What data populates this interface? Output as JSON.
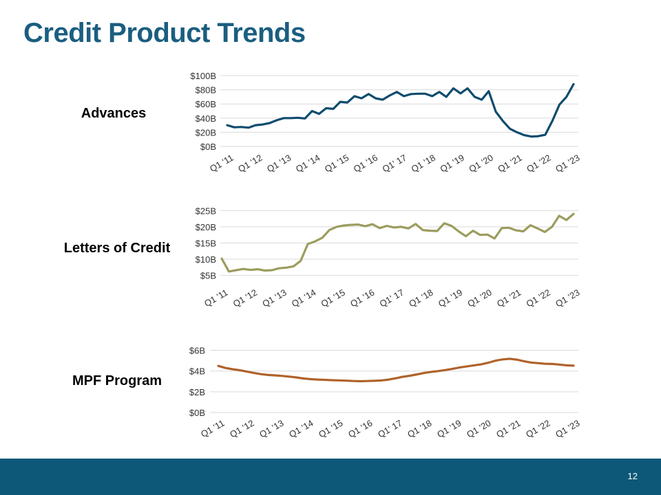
{
  "title": "Credit Product Trends",
  "page_number": "12",
  "colors": {
    "title": "#1a5e80",
    "footer": "#0d5878",
    "advances": "#0f4c6e",
    "letters_of_credit": "#9c9c5e",
    "mpf_program": "#b0622a",
    "grid": "#d9d9d9"
  },
  "chart_data": [
    {
      "type": "line",
      "title": "Advances",
      "ylim": [
        0,
        100
      ],
      "yticks": [
        0,
        20,
        40,
        60,
        80,
        100
      ],
      "ytick_labels": [
        "$0B",
        "$20B",
        "$40B",
        "$60B",
        "$80B",
        "$100B"
      ],
      "xtick_labels": [
        "Q1 '11",
        "Q1 '12",
        "Q1 '13",
        "Q1 '14",
        "Q1 '15",
        "Q1 '16",
        "Q1' 17",
        "Q1 '18",
        "Q1 '19",
        "Q1 '20",
        "Q1 '21",
        "Q1 '22",
        "Q1 '23"
      ],
      "grid": true,
      "series": [
        {
          "values": [
            30,
            27,
            27.5,
            26.5,
            30,
            31,
            33,
            37,
            40,
            40,
            40.5,
            39.5,
            50,
            46,
            54,
            53,
            63,
            62,
            71,
            68,
            74,
            68,
            66,
            72,
            77,
            71,
            74,
            74.5,
            74.5,
            71,
            77,
            70,
            82,
            75,
            82,
            70,
            66,
            78,
            49,
            36,
            25,
            20,
            16,
            14,
            14.5,
            16.5,
            36,
            59,
            70,
            88
          ]
        }
      ]
    },
    {
      "type": "line",
      "title": "Letters of Credit",
      "ylim": [
        3,
        25.5
      ],
      "yticks": [
        5,
        10,
        15,
        20,
        25
      ],
      "ytick_labels": [
        "$5B",
        "$10B",
        "$15B",
        "$20B",
        "$25B"
      ],
      "xtick_labels": [
        "Q1 '11",
        "Q1 '12",
        "Q1 '13",
        "Q1 '14",
        "Q1 '15",
        "Q1 '16",
        "Q1' 17",
        "Q1 '18",
        "Q1 '19",
        "Q1 '20",
        "Q1 '21",
        "Q1 '22",
        "Q1 '23"
      ],
      "grid": true,
      "series": [
        {
          "values": [
            10.2,
            6.2,
            6.6,
            7,
            6.7,
            6.9,
            6.5,
            6.6,
            7.2,
            7.4,
            7.8,
            9.5,
            14.7,
            15.5,
            16.6,
            19,
            20,
            20.4,
            20.6,
            20.7,
            20.2,
            20.8,
            19.6,
            20.3,
            19.8,
            20,
            19.5,
            20.9,
            19,
            18.8,
            18.7,
            21.1,
            20.3,
            18.6,
            17.1,
            18.8,
            17.5,
            17.6,
            16.4,
            19.6,
            19.7,
            18.9,
            18.6,
            20.5,
            19.5,
            18.4,
            20,
            23.4,
            22.1,
            24
          ]
        }
      ]
    },
    {
      "type": "line",
      "title": "MPF Program",
      "ylim": [
        0,
        6.5
      ],
      "yticks": [
        0,
        2,
        4,
        6
      ],
      "ytick_labels": [
        "$0B",
        "$2B",
        "$4B",
        "$6B"
      ],
      "xtick_labels": [
        "Q1 '11",
        "Q1 '12",
        "Q1 '13",
        "Q1 '14",
        "Q1 '15",
        "Q1 '16",
        "Q1' 17",
        "Q1 '18",
        "Q1 '19",
        "Q1 '20",
        "Q1 '21",
        "Q1 '22",
        "Q1 '23"
      ],
      "grid": true,
      "series": [
        {
          "values": [
            4.5,
            4.3,
            4.18,
            4.08,
            3.95,
            3.82,
            3.7,
            3.62,
            3.58,
            3.53,
            3.46,
            3.38,
            3.28,
            3.22,
            3.18,
            3.15,
            3.12,
            3.1,
            3.07,
            3.04,
            3.02,
            3.04,
            3.06,
            3.1,
            3.18,
            3.3,
            3.45,
            3.55,
            3.68,
            3.82,
            3.92,
            4.0,
            4.1,
            4.22,
            4.35,
            4.45,
            4.55,
            4.65,
            4.8,
            5.0,
            5.12,
            5.18,
            5.1,
            4.95,
            4.82,
            4.76,
            4.7,
            4.68,
            4.62,
            4.55,
            4.52
          ]
        }
      ]
    }
  ]
}
